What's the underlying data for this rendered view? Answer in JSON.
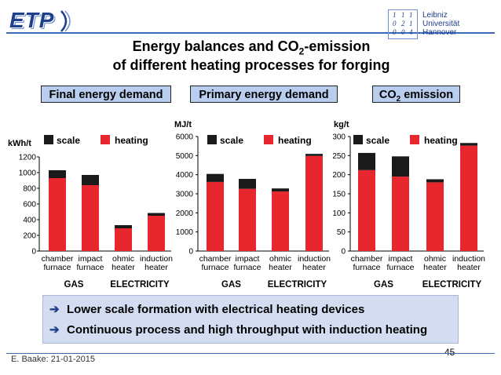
{
  "header": {
    "logo_text": "ETP",
    "university_lines": [
      "Leibniz",
      "Universität",
      "Hannover"
    ],
    "university_seal": [
      "1",
      "1",
      "1",
      "0",
      "2",
      "1",
      "0",
      "0",
      "4"
    ]
  },
  "title_line1_a": "Energy balances and CO",
  "title_line1_sub": "2",
  "title_line1_b": "-emission",
  "title_line2": "of different heating processes for forging",
  "sections": {
    "final": "Final energy demand",
    "primary": "Primary energy demand",
    "co2_a": "CO",
    "co2_sub": "2",
    "co2_b": " emission"
  },
  "legend": {
    "scale": "scale",
    "heating": "heating"
  },
  "colors": {
    "scale": "#1a1a1a",
    "heating": "#e8262d",
    "box_fill": "#b9cdee",
    "accent": "#1f3f8a"
  },
  "chart_data": [
    {
      "type": "bar",
      "stacked": true,
      "ylabel": "kWh/t",
      "ylim": [
        0,
        1200
      ],
      "yticks": [
        0,
        200,
        400,
        600,
        800,
        1000,
        1200
      ],
      "categories": [
        "chamber furnace",
        "impact furnace",
        "ohmic heater",
        "induction heater"
      ],
      "groups": [
        "GAS",
        "ELECTRICITY"
      ],
      "series": [
        {
          "name": "heating",
          "values": [
            930,
            840,
            290,
            450
          ]
        },
        {
          "name": "scale",
          "values": [
            100,
            130,
            40,
            35
          ]
        }
      ]
    },
    {
      "type": "bar",
      "stacked": true,
      "ylabel": "MJ/t",
      "ylim": [
        0,
        6000
      ],
      "yticks": [
        0,
        1000,
        2000,
        3000,
        4000,
        5000,
        6000
      ],
      "categories": [
        "chamber furnace",
        "impact furnace",
        "ohmic heater",
        "induction heater"
      ],
      "groups": [
        "GAS",
        "ELECTRICITY"
      ],
      "series": [
        {
          "name": "heating",
          "values": [
            3620,
            3260,
            3120,
            4980
          ]
        },
        {
          "name": "scale",
          "values": [
            420,
            520,
            160,
            110
          ]
        }
      ]
    },
    {
      "type": "bar",
      "stacked": true,
      "ylabel": "kg/t",
      "ylim": [
        0,
        300
      ],
      "yticks": [
        0,
        50,
        100,
        150,
        200,
        250,
        300
      ],
      "categories": [
        "chamber furnace",
        "impact furnace",
        "ohmic heater",
        "induction heater"
      ],
      "groups": [
        "GAS",
        "ELECTRICITY"
      ],
      "series": [
        {
          "name": "heating",
          "values": [
            212,
            195,
            180,
            276
          ]
        },
        {
          "name": "scale",
          "values": [
            45,
            53,
            8,
            7
          ]
        }
      ]
    }
  ],
  "bullets": [
    "Lower scale formation with electrical heating devices",
    "Continuous process and high throughput with induction heating"
  ],
  "footer": "E. Baake: 21-01-2015",
  "page_number": "45"
}
